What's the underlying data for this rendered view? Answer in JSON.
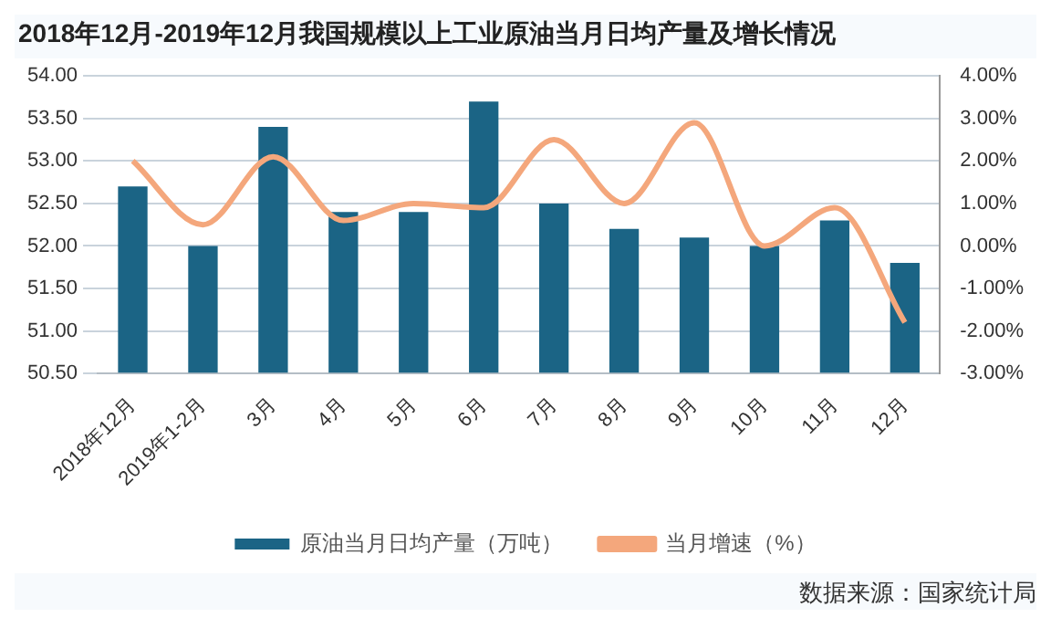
{
  "chart_data": {
    "type": "bar",
    "title": "2018年12月-2019年12月我国规模以上工业原油当月日均产量及增长情况",
    "categories": [
      "2018年12月",
      "2019年1-2月",
      "3月",
      "4月",
      "5月",
      "6月",
      "7月",
      "8月",
      "9月",
      "10月",
      "11月",
      "12月"
    ],
    "series": [
      {
        "name": "原油当月日均产量（万吨）",
        "color": "#1b6485",
        "values": [
          52.7,
          52.0,
          53.4,
          52.4,
          52.4,
          53.7,
          52.5,
          52.2,
          52.1,
          52.0,
          52.3,
          51.8
        ]
      },
      {
        "name": "当月增速（%）",
        "type": "line",
        "axis": "y2",
        "color": "#f4a77c",
        "values": [
          2.0,
          0.5,
          2.1,
          0.6,
          1.0,
          0.9,
          2.5,
          1.0,
          2.9,
          0.0,
          0.9,
          -1.8
        ]
      }
    ],
    "ylim": [
      50.5,
      54
    ],
    "yticks": [
      {
        "value": 50.5,
        "label": "50.50"
      },
      {
        "value": 51,
        "label": "51.00"
      },
      {
        "value": 51.5,
        "label": "51.50"
      },
      {
        "value": 52,
        "label": "52.00"
      },
      {
        "value": 52.5,
        "label": "52.50"
      },
      {
        "value": 53,
        "label": "53.00"
      },
      {
        "value": 53.5,
        "label": "53.50"
      },
      {
        "value": 54,
        "label": "54.00"
      }
    ],
    "y2lim": [
      -3,
      4
    ],
    "y2ticks": [
      {
        "value": -3,
        "label": "-3.00%"
      },
      {
        "value": -2,
        "label": "-2.00%"
      },
      {
        "value": -1,
        "label": "-1.00%"
      },
      {
        "value": 0,
        "label": "0.00%"
      },
      {
        "value": 1,
        "label": "1.00%"
      },
      {
        "value": 2,
        "label": "2.00%"
      },
      {
        "value": 3,
        "label": "3.00%"
      },
      {
        "value": 4,
        "label": "4.00%"
      }
    ],
    "grid": "y",
    "legend": "bottom",
    "marker": "none",
    "line_style": "solid",
    "annotations": [
      "数据来源：国家统计局"
    ]
  }
}
